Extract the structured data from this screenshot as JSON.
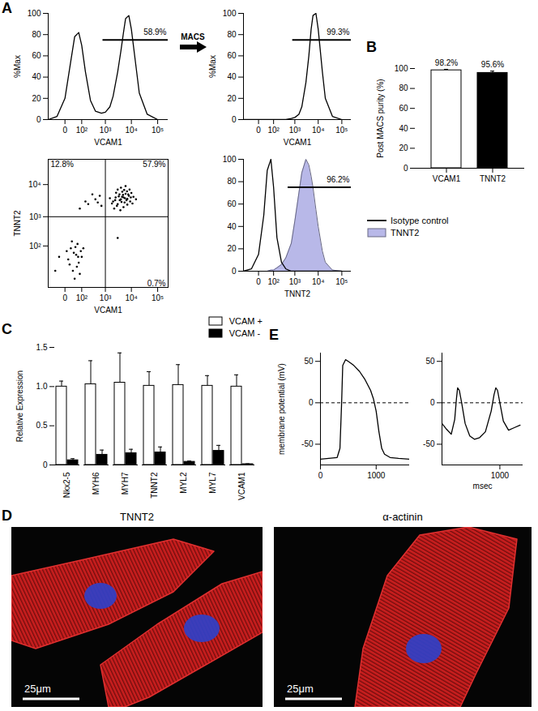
{
  "arrow_text": "MACS",
  "chart_data": [
    {
      "panel": "A",
      "type": "line",
      "xlabel": "VCAM1",
      "ylabel": "%Max",
      "log": "x",
      "color": "#000000",
      "x": [
        -100,
        -30,
        0,
        20,
        40,
        70,
        100,
        150,
        250,
        400,
        700,
        1000,
        1500,
        2000,
        3000,
        4000,
        5000,
        6000,
        8000,
        10000,
        15000,
        20000,
        40000,
        100000
      ],
      "values": [
        0,
        3,
        20,
        55,
        78,
        82,
        70,
        45,
        18,
        8,
        6,
        7,
        12,
        22,
        45,
        65,
        82,
        95,
        98,
        85,
        50,
        25,
        5,
        0
      ],
      "xlim": [
        -100,
        250000
      ],
      "xticks": [
        0,
        {
          "value": 100,
          "label": "10²"
        },
        {
          "value": 1000,
          "label": "10³"
        },
        {
          "value": 10000,
          "label": "10⁴"
        },
        {
          "value": 100000,
          "label": "10⁵"
        }
      ],
      "ylim": [
        0,
        100
      ],
      "yticks": [
        0,
        20,
        40,
        60,
        80,
        100
      ],
      "gate": {
        "x": [
          800,
          250000
        ],
        "y": 75,
        "label": "58.9%"
      }
    },
    {
      "type": "line",
      "xlabel": "VCAM1",
      "ylabel": "%Max",
      "log": "x",
      "color": "#000000",
      "x": [
        -100,
        -30,
        0,
        20,
        40,
        70,
        100,
        150,
        250,
        400,
        700,
        1000,
        1500,
        2000,
        3000,
        4000,
        5000,
        6000,
        8000,
        10000,
        15000,
        20000,
        40000,
        100000
      ],
      "values": [
        0,
        0,
        0,
        0,
        0,
        0,
        0,
        0,
        0,
        0,
        1,
        2,
        5,
        12,
        35,
        60,
        85,
        98,
        100,
        85,
        45,
        20,
        3,
        0
      ],
      "xlim": [
        -100,
        250000
      ],
      "xticks": [
        0,
        {
          "value": 100,
          "label": "10²"
        },
        {
          "value": 1000,
          "label": "10³"
        },
        {
          "value": 10000,
          "label": "10⁴"
        },
        {
          "value": 100000,
          "label": "10⁵"
        }
      ],
      "ylim": [
        0,
        100
      ],
      "yticks": [
        0,
        20,
        40,
        60,
        80,
        100
      ],
      "gate": {
        "x": [
          800,
          250000
        ],
        "y": 75,
        "label": "99.3%"
      }
    },
    {
      "type": "scatter",
      "xlabel": "VCAM1",
      "ylabel": "TNNT2",
      "log": true,
      "color": "#000000",
      "x": [
        2000,
        2500,
        3000,
        3500,
        4000,
        4500,
        5000,
        5500,
        6000,
        7000,
        8000,
        9000,
        10000,
        3000,
        4000,
        6000,
        2200,
        2800,
        3800,
        5000,
        7000,
        12000,
        15000,
        3300,
        4800,
        6500,
        5300,
        2600,
        8500,
        1800,
        4200,
        6800,
        9500,
        3600,
        5700,
        7600,
        2400,
        4400,
        1500,
        11000,
        200,
        400,
        80,
        600,
        300,
        150,
        700,
        500,
        10,
        30,
        50,
        70,
        20,
        -20,
        40,
        90,
        60,
        15,
        35,
        80,
        -40,
        100,
        25,
        55,
        45,
        5,
        120,
        65,
        3000
      ],
      "values": [
        3000,
        4000,
        2500,
        5000,
        3500,
        6000,
        4000,
        2800,
        5200,
        3600,
        4500,
        3000,
        5500,
        7000,
        8000,
        9000,
        1800,
        2200,
        1600,
        2000,
        2400,
        4200,
        3500,
        4300,
        4800,
        3300,
        6800,
        5600,
        7000,
        2600,
        2900,
        6200,
        4000,
        3300,
        3800,
        5000,
        3300,
        4200,
        3800,
        2600,
        2500,
        3500,
        1800,
        4500,
        5000,
        3000,
        2200,
        2800,
        20,
        -10,
        40,
        10,
        80,
        30,
        -40,
        60,
        120,
        5,
        50,
        -20,
        -10,
        30,
        150,
        0,
        90,
        60,
        80,
        30,
        200
      ],
      "xlim": [
        -100,
        250000
      ],
      "xticks": [
        0,
        {
          "value": 100,
          "label": "10²"
        },
        {
          "value": 1000,
          "label": "10³"
        },
        {
          "value": 10000,
          "label": "10⁴"
        },
        {
          "value": 100000,
          "label": "10⁵"
        }
      ],
      "ylim": [
        -100,
        60000
      ],
      "yticks": [
        {
          "value": 100,
          "label": "10²"
        },
        {
          "value": 1000,
          "label": "10³"
        },
        {
          "value": 10000,
          "label": "10⁴"
        }
      ],
      "quadrants": {
        "x": 1000,
        "y": 1000,
        "labels": {
          "top-left": "12.8%",
          "top-right": "57.9%",
          "bottom-right": "0.7%"
        }
      }
    },
    {
      "type": "line",
      "xlabel": "TNNT2",
      "log": "x",
      "legend": "right",
      "x": [
        -100,
        -30,
        0,
        20,
        40,
        70,
        100,
        150,
        250,
        400,
        700,
        1000,
        1500,
        2000,
        3000,
        4000,
        5000,
        6000,
        8000,
        10000,
        15000,
        20000,
        40000,
        100000
      ],
      "series": [
        {
          "name": "Isotype control",
          "color": "#000000",
          "type": "line",
          "values": [
            0,
            2,
            15,
            50,
            90,
            100,
            75,
            30,
            8,
            2,
            0,
            0,
            0,
            0,
            0,
            0,
            0,
            0,
            0,
            0,
            0,
            0,
            0,
            0
          ]
        },
        {
          "name": "TNNT2",
          "color": "#b8b8e8",
          "type": "area",
          "values": [
            0,
            0,
            0,
            0,
            0,
            1,
            1,
            3,
            6,
            12,
            25,
            45,
            70,
            88,
            100,
            95,
            85,
            75,
            55,
            40,
            18,
            8,
            1,
            0
          ]
        }
      ],
      "xlim": [
        -100,
        250000
      ],
      "xticks": [
        0,
        {
          "value": 100,
          "label": "10²"
        },
        {
          "value": 1000,
          "label": "10³"
        },
        {
          "value": 10000,
          "label": "10⁴"
        },
        {
          "value": 100000,
          "label": "10⁵"
        }
      ],
      "ylim": [
        0,
        100
      ],
      "yticks": [
        0,
        20,
        40,
        60,
        80,
        100
      ],
      "gate": {
        "x": [
          500,
          250000
        ],
        "y": 75,
        "label": "96.2%"
      }
    },
    {
      "panel": "B",
      "type": "bar",
      "ylabel": "Post MACS purity (%)",
      "categories": [
        "VCAM1",
        "TNNT2"
      ],
      "values": [
        98.2,
        95.6
      ],
      "errors": [
        1.0,
        1.8
      ],
      "value_labels": [
        "98.2%",
        "95.6%"
      ],
      "data_labels": true,
      "colors": [
        "#ffffff",
        "#000000"
      ],
      "ylim": [
        0,
        100
      ],
      "yticks": [
        0,
        20,
        40,
        60,
        80,
        100
      ]
    },
    {
      "panel": "C",
      "type": "bar",
      "ylabel": "Relative Expression",
      "legend": "top-right",
      "categories": [
        "Nkx2-5",
        "MYH6",
        "MYH7",
        "TNNT2",
        "MYL2",
        "MYL7",
        "VCAM1"
      ],
      "series": [
        {
          "name": "VCAM +",
          "color": "#ffffff",
          "values": [
            1.0,
            1.03,
            1.05,
            1.01,
            1.02,
            1.01,
            1.0
          ],
          "errors": [
            0.07,
            0.3,
            0.38,
            0.18,
            0.26,
            0.13,
            0.15
          ]
        },
        {
          "name": "VCAM -",
          "color": "#000000",
          "values": [
            0.06,
            0.13,
            0.15,
            0.16,
            0.04,
            0.18,
            0.01
          ],
          "errors": [
            0.02,
            0.06,
            0.05,
            0.07,
            0.01,
            0.07,
            0.005
          ]
        }
      ],
      "ylim": [
        0,
        1.5
      ],
      "yticks": [
        0,
        0.5,
        {
          "value": 1,
          "label": "1.0"
        },
        1.5
      ]
    },
    {
      "panel": "E",
      "type": "line",
      "ylabel": "membrane potential (mV)",
      "color": "#000000",
      "x": [
        0,
        150,
        300,
        350,
        380,
        400,
        450,
        500,
        600,
        700,
        800,
        900,
        950,
        1000,
        1050,
        1100,
        1150,
        1250,
        1400,
        1600
      ],
      "values": [
        -68,
        -67,
        -66,
        -55,
        0,
        45,
        52,
        50,
        45,
        38,
        28,
        15,
        5,
        -10,
        -35,
        -55,
        -62,
        -66,
        -67,
        -68
      ],
      "xlim": [
        0,
        1600
      ],
      "xticks": [
        0,
        1000
      ],
      "ylim": [
        -75,
        60
      ],
      "yticks": [
        -50,
        0,
        50
      ],
      "hline": {
        "value": 0,
        "line_style": "dashed"
      }
    },
    {
      "type": "line",
      "xlabel": "msec",
      "color": "#000000",
      "x": [
        0,
        80,
        160,
        220,
        250,
        270,
        300,
        340,
        400,
        480,
        560,
        650,
        750,
        850,
        900,
        930,
        960,
        1000,
        1060,
        1150,
        1250,
        1350
      ],
      "values": [
        -25,
        -32,
        -38,
        -20,
        5,
        18,
        15,
        0,
        -25,
        -40,
        -44,
        -42,
        -35,
        -10,
        10,
        18,
        15,
        0,
        -22,
        -33,
        -30,
        -27
      ],
      "xlim": [
        0,
        1400
      ],
      "xticks": [
        1000
      ],
      "ylim": [
        -75,
        60
      ],
      "yticks": [
        -50,
        0,
        50
      ],
      "hline": {
        "value": 0,
        "line_style": "dashed"
      }
    }
  ],
  "images": {
    "panel": "D",
    "items": [
      {
        "title": "TNNT2",
        "scale_bar": "25μm"
      },
      {
        "title": "α-actinin",
        "scale_bar": "25μm"
      }
    ]
  }
}
